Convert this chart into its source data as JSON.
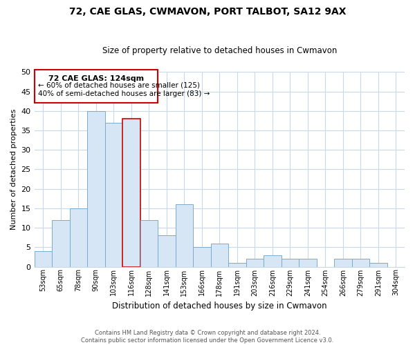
{
  "title": "72, CAE GLAS, CWMAVON, PORT TALBOT, SA12 9AX",
  "subtitle": "Size of property relative to detached houses in Cwmavon",
  "xlabel": "Distribution of detached houses by size in Cwmavon",
  "ylabel": "Number of detached properties",
  "bin_labels": [
    "53sqm",
    "65sqm",
    "78sqm",
    "90sqm",
    "103sqm",
    "116sqm",
    "128sqm",
    "141sqm",
    "153sqm",
    "166sqm",
    "178sqm",
    "191sqm",
    "203sqm",
    "216sqm",
    "229sqm",
    "241sqm",
    "254sqm",
    "266sqm",
    "279sqm",
    "291sqm",
    "304sqm"
  ],
  "bar_heights": [
    4,
    12,
    15,
    40,
    37,
    38,
    12,
    8,
    16,
    5,
    6,
    1,
    2,
    3,
    2,
    2,
    0,
    2,
    2,
    1,
    0
  ],
  "bar_color": "#d6e6f4",
  "bar_edge_color": "#7aaacb",
  "highlight_bar_index": 5,
  "highlight_edge_color": "#cc0000",
  "ylim": [
    0,
    50
  ],
  "yticks": [
    0,
    5,
    10,
    15,
    20,
    25,
    30,
    35,
    40,
    45,
    50
  ],
  "annotation_title": "72 CAE GLAS: 124sqm",
  "annotation_line1": "← 60% of detached houses are smaller (125)",
  "annotation_line2": "40% of semi-detached houses are larger (83) →",
  "annotation_box_color": "#ffffff",
  "annotation_box_edge": "#cc0000",
  "footer1": "Contains HM Land Registry data © Crown copyright and database right 2024.",
  "footer2": "Contains public sector information licensed under the Open Government Licence v3.0.",
  "background_color": "#ffffff",
  "grid_color": "#c8d8ea"
}
